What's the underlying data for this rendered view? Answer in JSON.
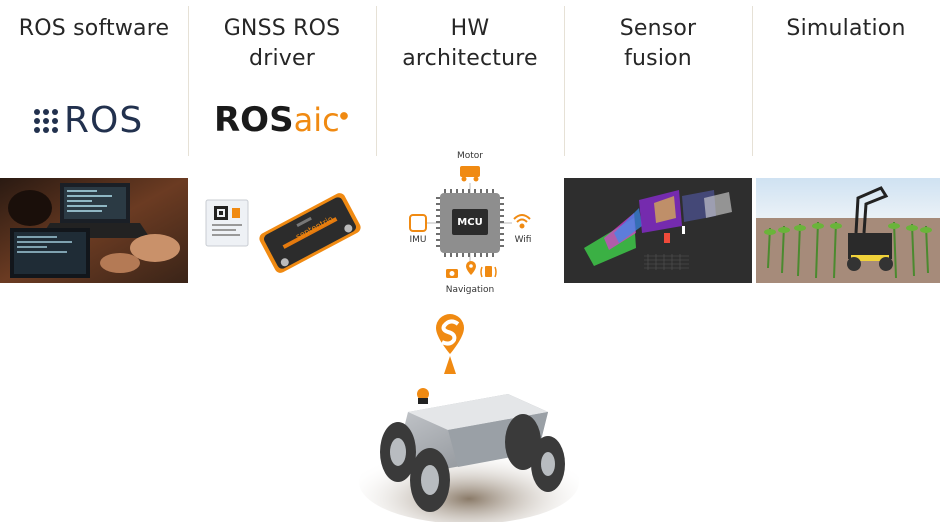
{
  "columns": [
    {
      "title_line1": "ROS software",
      "title_line2": ""
    },
    {
      "title_line1": "GNSS ROS",
      "title_line2": "driver"
    },
    {
      "title_line1": "HW",
      "title_line2": "architecture"
    },
    {
      "title_line1": "Sensor",
      "title_line2": "fusion"
    },
    {
      "title_line1": "Simulation",
      "title_line2": ""
    }
  ],
  "logos": {
    "ros": "ROS",
    "rosaic_main": "ROS",
    "rosaic_accent": "aic"
  },
  "hw_diagram": {
    "chip_label": "MCU",
    "top_label": "Motor",
    "left_label": "IMU",
    "right_label": "Wifi",
    "bottom_label": "Navigation"
  },
  "receiver_brand": "septentrio",
  "colors": {
    "accent_orange": "#f08a12",
    "ros_navy": "#22314e",
    "divider": "#e6e1d6"
  }
}
